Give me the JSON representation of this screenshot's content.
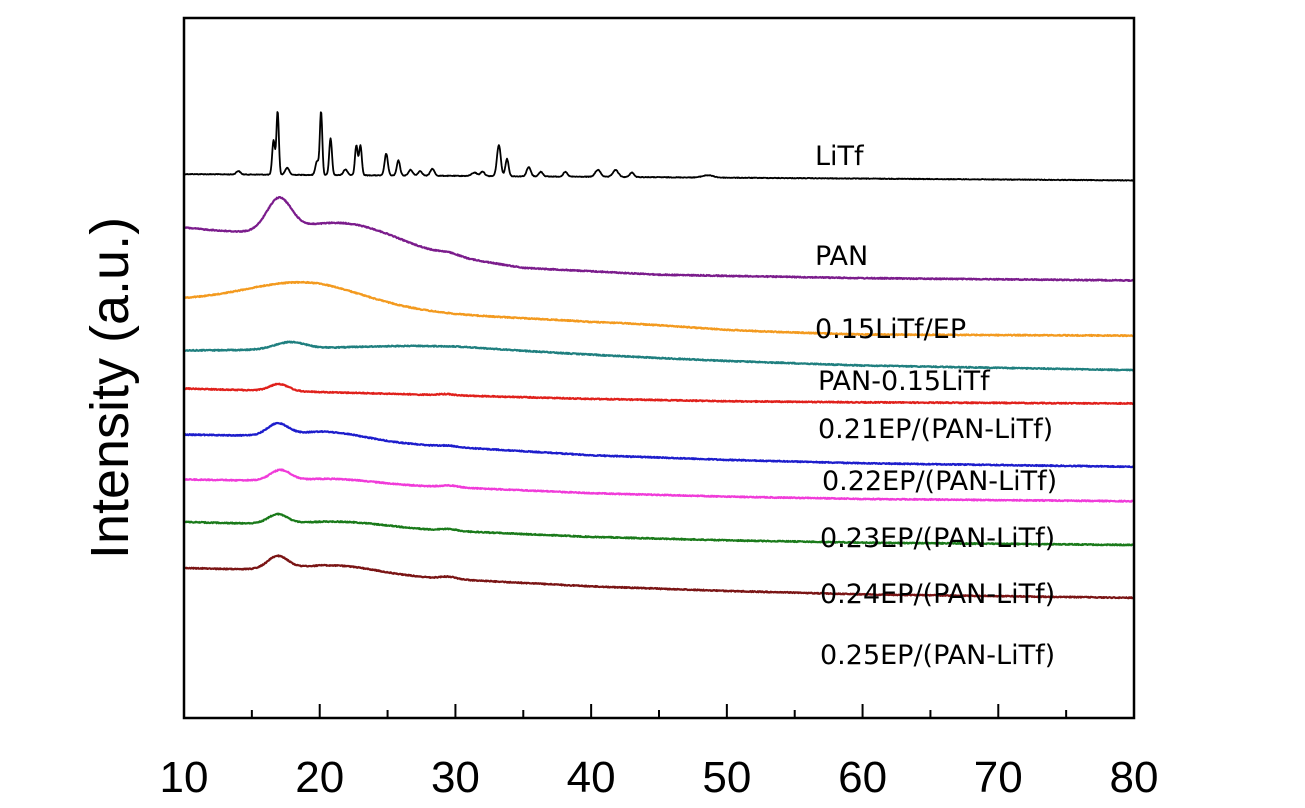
{
  "chart_data": {
    "type": "line",
    "title": "",
    "xlabel": "",
    "ylabel": "Intensity (a.u.)",
    "xlim": [
      10,
      80
    ],
    "x_ticks": [
      "10",
      "20",
      "30",
      "40",
      "50",
      "60",
      "70",
      "80"
    ],
    "grid": false,
    "legend": "labels placed right of each curve",
    "series": [
      {
        "name": "LiTf",
        "color": "#000000",
        "baseline": [
          [
            10,
            0.905
          ],
          [
            80,
            0.96
          ]
        ],
        "peaks": [
          [
            14.0,
            0.03,
            0.15
          ],
          [
            16.6,
            0.3,
            0.1
          ],
          [
            16.9,
            0.55,
            0.09
          ],
          [
            17.6,
            0.06,
            0.15
          ],
          [
            19.8,
            0.12,
            0.12
          ],
          [
            20.1,
            0.55,
            0.09
          ],
          [
            20.8,
            0.32,
            0.1
          ],
          [
            21.9,
            0.05,
            0.15
          ],
          [
            22.7,
            0.26,
            0.1
          ],
          [
            23.0,
            0.26,
            0.1
          ],
          [
            24.9,
            0.19,
            0.12
          ],
          [
            25.8,
            0.13,
            0.12
          ],
          [
            26.7,
            0.05,
            0.15
          ],
          [
            27.4,
            0.04,
            0.15
          ],
          [
            28.3,
            0.06,
            0.15
          ],
          [
            31.4,
            0.03,
            0.2
          ],
          [
            32.0,
            0.04,
            0.15
          ],
          [
            33.2,
            0.27,
            0.14
          ],
          [
            33.8,
            0.15,
            0.12
          ],
          [
            35.4,
            0.08,
            0.15
          ],
          [
            36.3,
            0.04,
            0.15
          ],
          [
            38.1,
            0.04,
            0.15
          ],
          [
            40.5,
            0.06,
            0.2
          ],
          [
            41.8,
            0.06,
            0.2
          ],
          [
            43.0,
            0.04,
            0.15
          ],
          [
            48.6,
            0.02,
            0.4
          ]
        ]
      },
      {
        "name": "PAN",
        "color": "#7b1c8c",
        "baseline": [
          [
            10,
            1.37
          ],
          [
            25,
            1.55
          ],
          [
            30,
            1.63
          ],
          [
            35,
            1.72
          ],
          [
            45,
            1.78
          ],
          [
            60,
            1.81
          ],
          [
            80,
            1.83
          ]
        ],
        "peaks": [
          [
            17.0,
            0.28,
            0.9
          ],
          [
            22.0,
            0.18,
            3.5
          ],
          [
            29.5,
            0.02,
            0.7
          ]
        ]
      },
      {
        "name": "0.15LiTf/EP",
        "color": "#f39a1f",
        "baseline": [
          [
            10,
            2.0
          ],
          [
            20,
            2.03
          ],
          [
            30,
            2.13
          ],
          [
            40,
            2.22
          ],
          [
            50,
            2.27
          ],
          [
            60,
            2.3
          ],
          [
            80,
            2.31
          ]
        ],
        "peaks": [
          [
            18.8,
            0.18,
            4.2
          ],
          [
            41.5,
            0.03,
            6.0
          ]
        ]
      },
      {
        "name": "PAN-0.15LiTf",
        "color": "#1f7f7f",
        "baseline": [
          [
            10,
            2.44
          ],
          [
            30,
            2.44
          ],
          [
            40,
            2.48
          ],
          [
            50,
            2.53
          ],
          [
            60,
            2.57
          ],
          [
            80,
            2.61
          ]
        ],
        "peaks": [
          [
            17.8,
            0.06,
            1.1
          ],
          [
            27.0,
            0.04,
            6.5
          ]
        ]
      },
      {
        "name": "0.21EP/(PAN-LiTf)",
        "color": "#e0201b",
        "baseline": [
          [
            10,
            2.77
          ],
          [
            20,
            2.8
          ],
          [
            30,
            2.83
          ],
          [
            40,
            2.86
          ],
          [
            50,
            2.88
          ],
          [
            60,
            2.89
          ],
          [
            80,
            2.9
          ]
        ],
        "peaks": [
          [
            17.0,
            0.06,
            0.7
          ],
          [
            29.3,
            0.01,
            0.6
          ]
        ]
      },
      {
        "name": "0.22EP/(PAN-LiTf)",
        "color": "#1d1dcc",
        "baseline": [
          [
            10,
            3.17
          ],
          [
            20,
            3.19
          ],
          [
            25,
            3.24
          ],
          [
            30,
            3.28
          ],
          [
            40,
            3.35
          ],
          [
            50,
            3.39
          ],
          [
            60,
            3.42
          ],
          [
            80,
            3.45
          ]
        ],
        "peaks": [
          [
            16.9,
            0.1,
            0.75
          ],
          [
            21.0,
            0.05,
            2.5
          ],
          [
            29.5,
            0.01,
            0.6
          ]
        ]
      },
      {
        "name": "0.23EP/(PAN-LiTf)",
        "color": "#f03bd9",
        "baseline": [
          [
            10,
            3.56
          ],
          [
            20,
            3.58
          ],
          [
            30,
            3.63
          ],
          [
            40,
            3.68
          ],
          [
            50,
            3.71
          ],
          [
            60,
            3.73
          ],
          [
            80,
            3.75
          ]
        ],
        "peaks": [
          [
            17.1,
            0.09,
            0.75
          ],
          [
            21.5,
            0.03,
            2.5
          ],
          [
            29.6,
            0.015,
            0.6
          ]
        ]
      },
      {
        "name": "0.24EP/(PAN-LiTf)",
        "color": "#1a7a1a",
        "baseline": [
          [
            10,
            3.93
          ],
          [
            20,
            3.96
          ],
          [
            30,
            4.01
          ],
          [
            40,
            4.06
          ],
          [
            50,
            4.09
          ],
          [
            60,
            4.11
          ],
          [
            80,
            4.13
          ]
        ],
        "peaks": [
          [
            16.9,
            0.08,
            0.7
          ],
          [
            22.0,
            0.04,
            3.0
          ],
          [
            29.5,
            0.015,
            0.6
          ]
        ]
      },
      {
        "name": "0.25EP/(PAN-LiTf)",
        "color": "#7a1414",
        "baseline": [
          [
            10,
            4.33
          ],
          [
            20,
            4.36
          ],
          [
            30,
            4.43
          ],
          [
            40,
            4.49
          ],
          [
            50,
            4.53
          ],
          [
            60,
            4.56
          ],
          [
            80,
            4.59
          ]
        ],
        "peaks": [
          [
            16.9,
            0.11,
            0.75
          ],
          [
            21.5,
            0.06,
            2.8
          ],
          [
            29.5,
            0.02,
            0.6
          ]
        ]
      }
    ]
  }
}
